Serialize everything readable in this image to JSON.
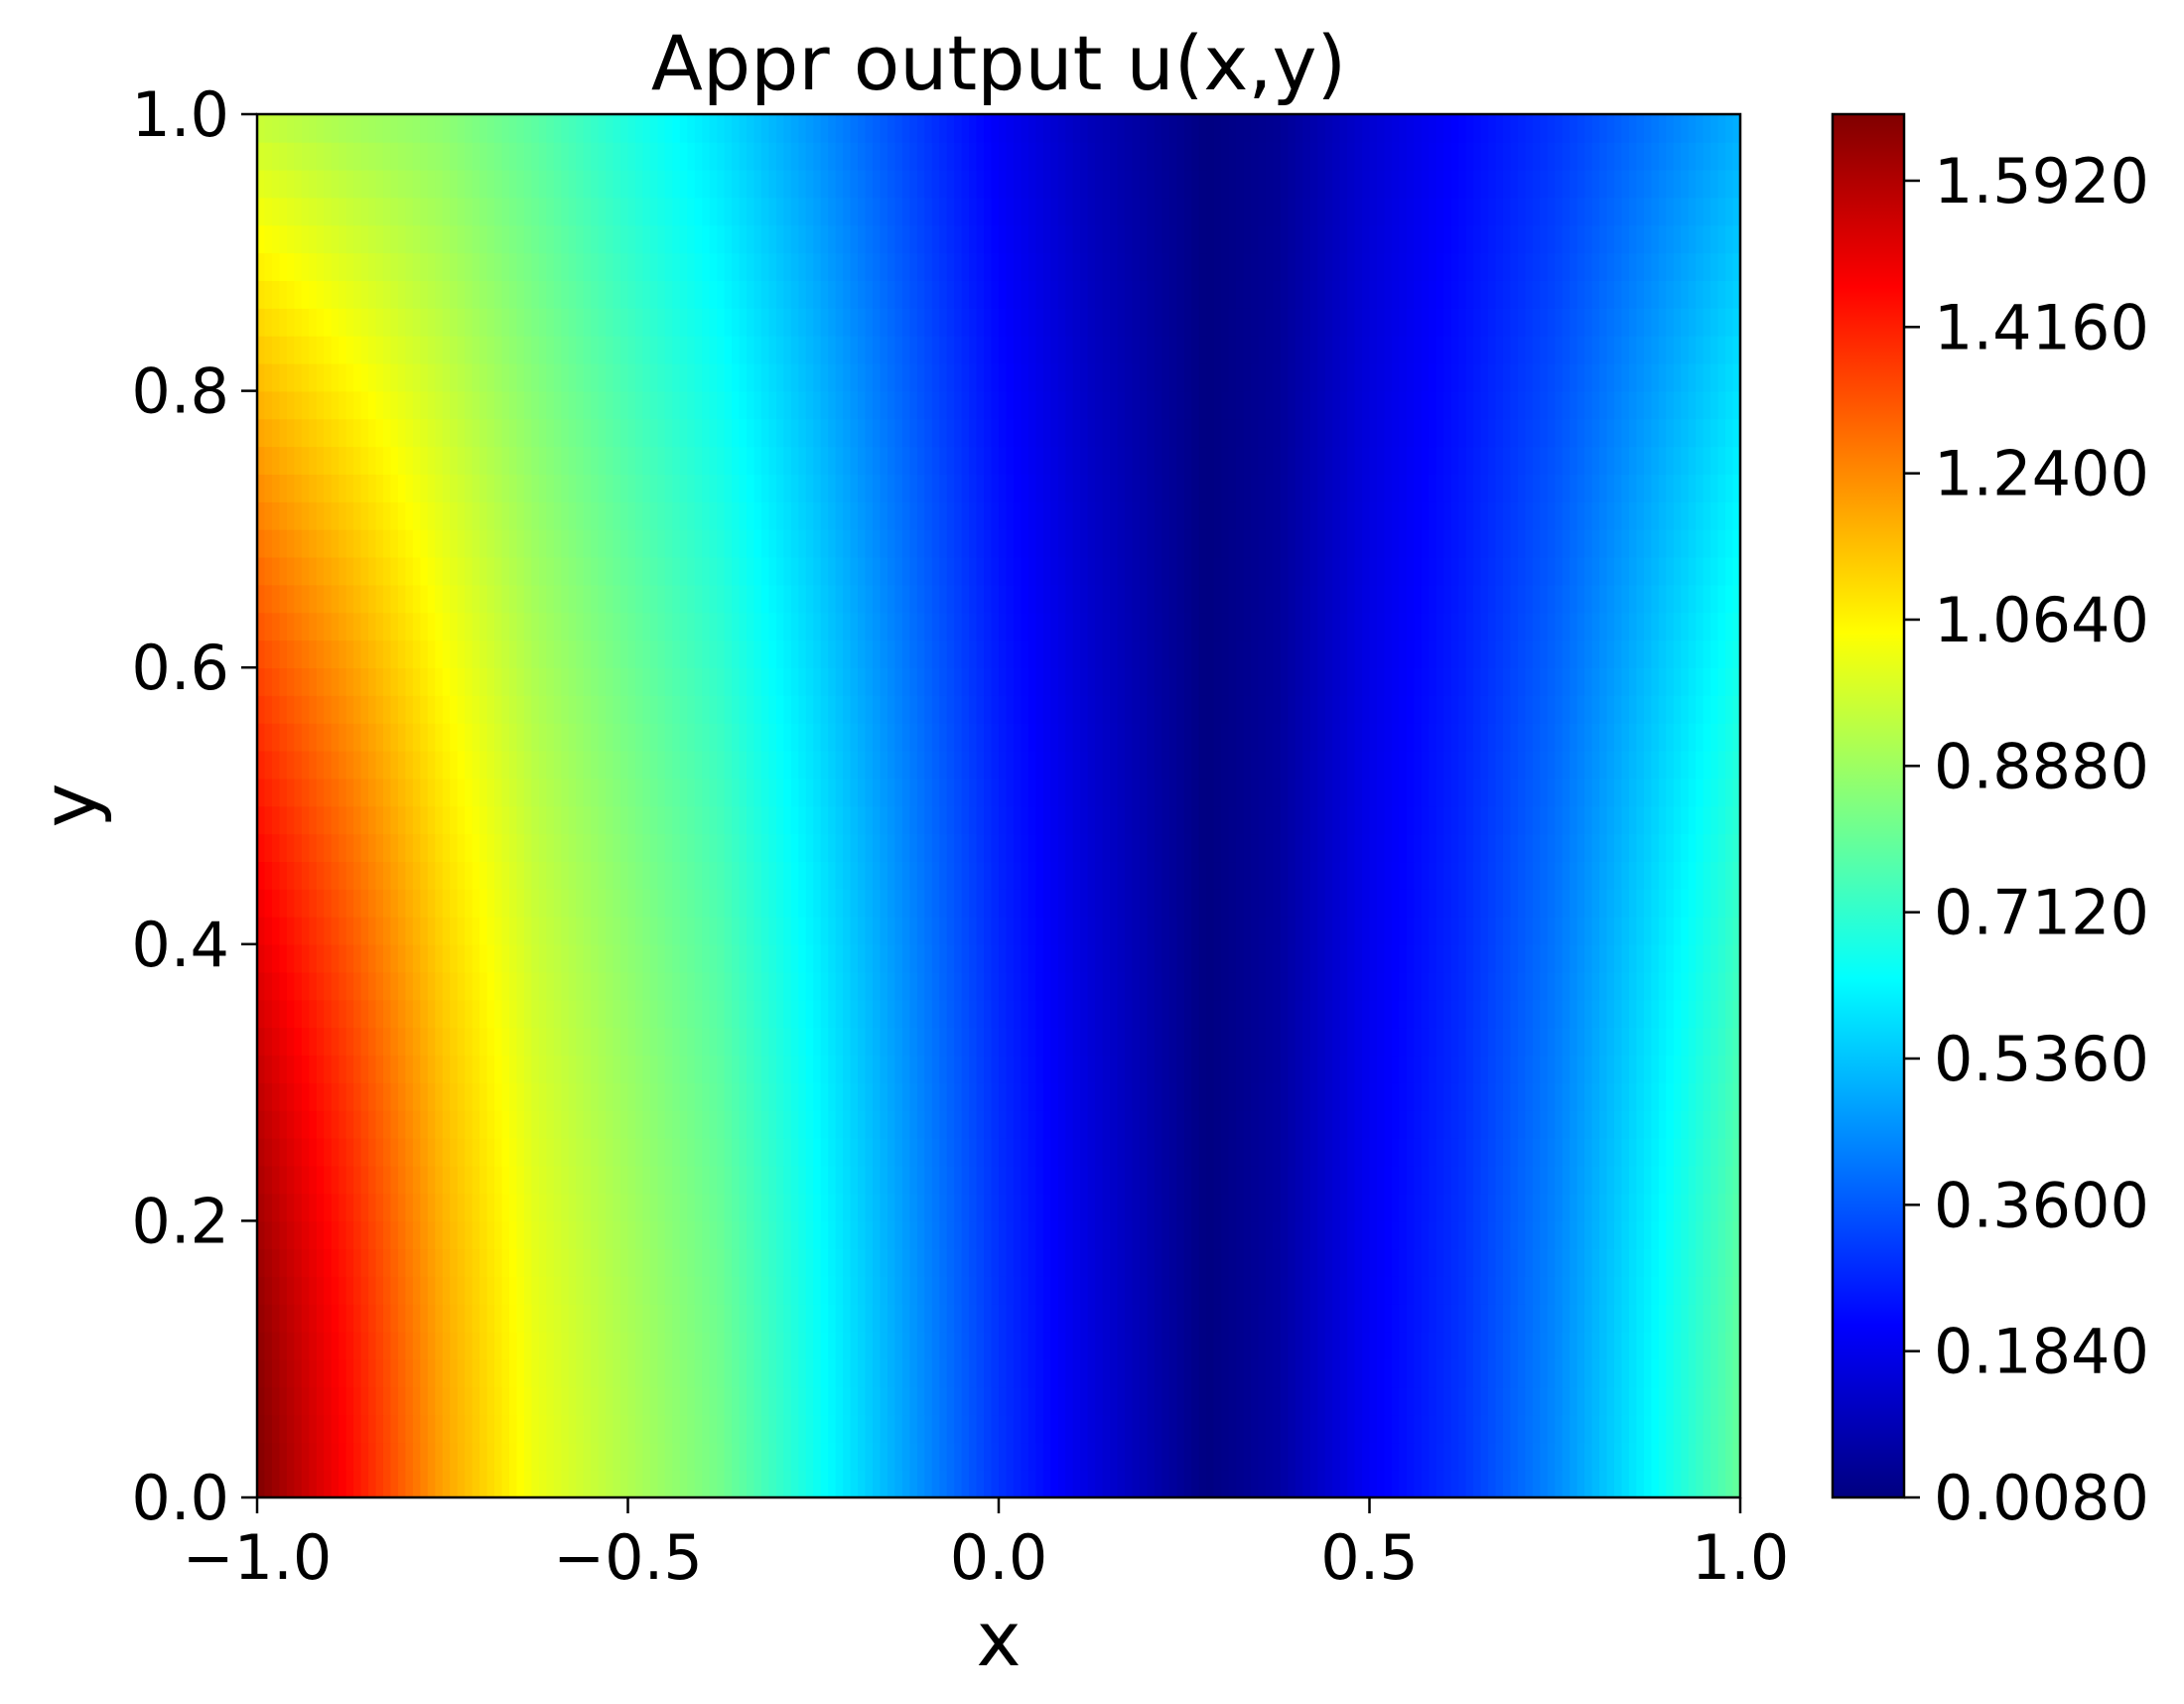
{
  "chart_data": {
    "type": "heatmap",
    "title": "Appr output u(x,y)",
    "xlabel": "x",
    "ylabel": "y",
    "xlim": [
      -1.0,
      1.0
    ],
    "ylim": [
      0.0,
      1.0
    ],
    "xticks": [
      -1.0,
      -0.5,
      0.0,
      0.5,
      1.0
    ],
    "xtick_labels": [
      "−1.0",
      "−0.5",
      "0.0",
      "0.5",
      "1.0"
    ],
    "yticks": [
      0.0,
      0.2,
      0.4,
      0.6,
      0.8,
      1.0
    ],
    "ytick_labels": [
      "0.0",
      "0.2",
      "0.4",
      "0.6",
      "0.8",
      "1.0"
    ],
    "colormap": "jet",
    "color_range": [
      0.008,
      1.672
    ],
    "colorbar_ticks": [
      0.008,
      0.184,
      0.36,
      0.536,
      0.712,
      0.888,
      1.064,
      1.24,
      1.416,
      1.592
    ],
    "colorbar_tick_labels": [
      "0.0080",
      "0.1840",
      "0.3600",
      "0.5360",
      "0.7120",
      "0.8880",
      "1.0640",
      "1.2400",
      "1.4160",
      "1.5920"
    ],
    "grid": false,
    "profile_x": [
      -1.0,
      -0.875,
      -0.75,
      -0.625,
      -0.5,
      -0.375,
      -0.25,
      -0.125,
      0.0,
      0.125,
      0.25,
      0.28,
      0.375,
      0.5,
      0.625,
      0.75,
      0.875,
      1.0
    ],
    "profile_u_at_y0": [
      1.67,
      1.45,
      1.2,
      1.02,
      0.92,
      0.82,
      0.66,
      0.48,
      0.3,
      0.16,
      0.04,
      0.01,
      0.06,
      0.2,
      0.3,
      0.44,
      0.62,
      0.8
    ],
    "profile_u_at_y1": [
      0.95,
      0.9,
      0.86,
      0.78,
      0.68,
      0.58,
      0.46,
      0.33,
      0.2,
      0.1,
      0.03,
      0.01,
      0.04,
      0.14,
      0.22,
      0.3,
      0.4,
      0.5
    ]
  }
}
